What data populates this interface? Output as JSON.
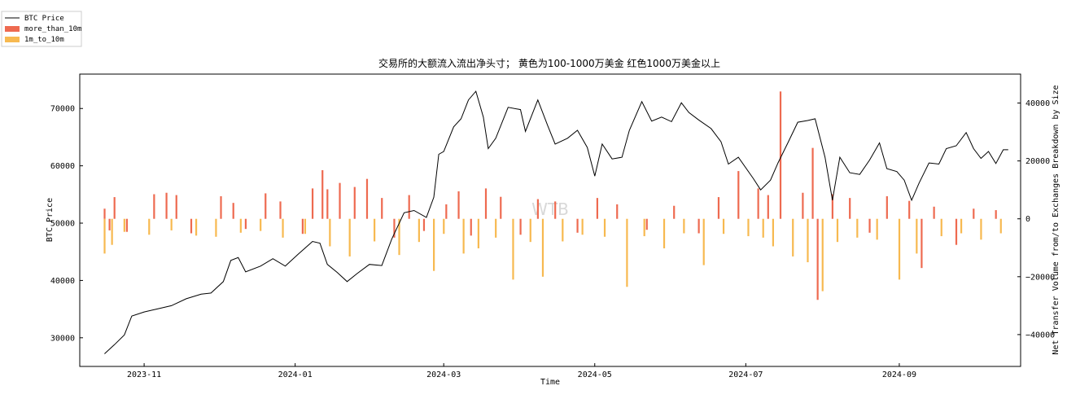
{
  "chart_data": {
    "type": "bar+line",
    "title": "交易所的大额流入流出净头寸； 黄色为100-1000万美金 红色1000万美金以上",
    "watermark": "WTB",
    "xlabel": "Time",
    "ylabel_left": "BTC Price",
    "ylabel_right": "Net Transfer Volume from/to Exchanges Breakdown by Size",
    "x_range": [
      "2023-10-06",
      "2024-10-20"
    ],
    "x_ticks": [
      "2023-11",
      "2024-01",
      "2024-03",
      "2024-05",
      "2024-07",
      "2024-09"
    ],
    "y_left_ticks": [
      30000,
      40000,
      50000,
      60000,
      70000
    ],
    "y_left_range": [
      25000,
      76000
    ],
    "y_right_ticks": [
      40000,
      20000,
      0,
      -20000,
      -40000
    ],
    "y_right_tick_labels": [
      "40000",
      "20000",
      "0",
      "−20000",
      "−40000"
    ],
    "y_right_range": [
      -51000,
      50000
    ],
    "legend": [
      {
        "label": "BTC Price",
        "color": "#000000",
        "kind": "line"
      },
      {
        "label": "more_than_10m",
        "color": "#ee6a50",
        "kind": "bar"
      },
      {
        "label": "1m_to_10m",
        "color": "#f7b950",
        "kind": "bar"
      }
    ],
    "legend_position": "top-left",
    "grid": false,
    "price_series": {
      "name": "BTC Price",
      "points": [
        [
          "2023-10-16",
          27200
        ],
        [
          "2023-10-20",
          28800
        ],
        [
          "2023-10-24",
          30500
        ],
        [
          "2023-10-27",
          33800
        ],
        [
          "2023-11-01",
          34500
        ],
        [
          "2023-11-06",
          35000
        ],
        [
          "2023-11-12",
          35600
        ],
        [
          "2023-11-18",
          36800
        ],
        [
          "2023-11-24",
          37600
        ],
        [
          "2023-11-28",
          37800
        ],
        [
          "2023-12-03",
          39800
        ],
        [
          "2023-12-06",
          43500
        ],
        [
          "2023-12-09",
          44000
        ],
        [
          "2023-12-12",
          41500
        ],
        [
          "2023-12-18",
          42500
        ],
        [
          "2023-12-23",
          43800
        ],
        [
          "2023-12-28",
          42500
        ],
        [
          "2024-01-02",
          44500
        ],
        [
          "2024-01-08",
          46800
        ],
        [
          "2024-01-11",
          46500
        ],
        [
          "2024-01-14",
          42800
        ],
        [
          "2024-01-18",
          41400
        ],
        [
          "2024-01-22",
          39800
        ],
        [
          "2024-01-26",
          41200
        ],
        [
          "2024-01-31",
          42800
        ],
        [
          "2024-02-05",
          42600
        ],
        [
          "2024-02-09",
          47200
        ],
        [
          "2024-02-14",
          51800
        ],
        [
          "2024-02-18",
          52200
        ],
        [
          "2024-02-23",
          51000
        ],
        [
          "2024-02-26",
          54500
        ],
        [
          "2024-02-28",
          62000
        ],
        [
          "2024-03-01",
          62500
        ],
        [
          "2024-03-05",
          66800
        ],
        [
          "2024-03-08",
          68200
        ],
        [
          "2024-03-11",
          71500
        ],
        [
          "2024-03-14",
          73000
        ],
        [
          "2024-03-17",
          68500
        ],
        [
          "2024-03-19",
          63000
        ],
        [
          "2024-03-22",
          64800
        ],
        [
          "2024-03-27",
          70200
        ],
        [
          "2024-04-01",
          69800
        ],
        [
          "2024-04-03",
          66000
        ],
        [
          "2024-04-08",
          71500
        ],
        [
          "2024-04-12",
          67000
        ],
        [
          "2024-04-15",
          63800
        ],
        [
          "2024-04-20",
          64800
        ],
        [
          "2024-04-24",
          66200
        ],
        [
          "2024-04-28",
          63200
        ],
        [
          "2024-05-01",
          58200
        ],
        [
          "2024-05-04",
          63800
        ],
        [
          "2024-05-08",
          61200
        ],
        [
          "2024-05-12",
          61500
        ],
        [
          "2024-05-15",
          66200
        ],
        [
          "2024-05-20",
          71200
        ],
        [
          "2024-05-24",
          67800
        ],
        [
          "2024-05-28",
          68500
        ],
        [
          "2024-06-01",
          67700
        ],
        [
          "2024-06-05",
          71000
        ],
        [
          "2024-06-08",
          69300
        ],
        [
          "2024-06-12",
          68000
        ],
        [
          "2024-06-17",
          66500
        ],
        [
          "2024-06-21",
          64200
        ],
        [
          "2024-06-24",
          60300
        ],
        [
          "2024-06-28",
          61500
        ],
        [
          "2024-07-04",
          57800
        ],
        [
          "2024-07-07",
          55800
        ],
        [
          "2024-07-11",
          57500
        ],
        [
          "2024-07-14",
          60500
        ],
        [
          "2024-07-18",
          64000
        ],
        [
          "2024-07-22",
          67600
        ],
        [
          "2024-07-26",
          67900
        ],
        [
          "2024-07-29",
          68200
        ],
        [
          "2024-08-02",
          61500
        ],
        [
          "2024-08-05",
          54000
        ],
        [
          "2024-08-08",
          61500
        ],
        [
          "2024-08-12",
          58800
        ],
        [
          "2024-08-16",
          58500
        ],
        [
          "2024-08-20",
          61000
        ],
        [
          "2024-08-24",
          64000
        ],
        [
          "2024-08-27",
          59500
        ],
        [
          "2024-08-31",
          59000
        ],
        [
          "2024-09-03",
          57500
        ],
        [
          "2024-09-06",
          54000
        ],
        [
          "2024-09-09",
          57000
        ],
        [
          "2024-09-13",
          60500
        ],
        [
          "2024-09-17",
          60300
        ],
        [
          "2024-09-20",
          63000
        ],
        [
          "2024-09-24",
          63500
        ],
        [
          "2024-09-28",
          65800
        ],
        [
          "2024-10-01",
          63000
        ],
        [
          "2024-10-04",
          61300
        ],
        [
          "2024-10-07",
          62500
        ],
        [
          "2024-10-10",
          60400
        ],
        [
          "2024-10-13",
          62800
        ],
        [
          "2024-10-15",
          62800
        ]
      ]
    },
    "flow_series": [
      {
        "name": "more_than_10m",
        "color": "#ee6a50",
        "points": [
          [
            "2023-10-16",
            3500
          ],
          [
            "2023-10-18",
            -4000
          ],
          [
            "2023-10-20",
            7500
          ],
          [
            "2023-10-25",
            -4500
          ],
          [
            "2023-11-05",
            8500
          ],
          [
            "2023-11-10",
            9000
          ],
          [
            "2023-11-14",
            8200
          ],
          [
            "2023-11-20",
            -5000
          ],
          [
            "2023-12-02",
            7800
          ],
          [
            "2023-12-07",
            5500
          ],
          [
            "2023-12-12",
            -3500
          ],
          [
            "2023-12-20",
            8800
          ],
          [
            "2023-12-26",
            6000
          ],
          [
            "2024-01-04",
            -5200
          ],
          [
            "2024-01-08",
            10500
          ],
          [
            "2024-01-12",
            16800
          ],
          [
            "2024-01-14",
            10200
          ],
          [
            "2024-01-19",
            12400
          ],
          [
            "2024-01-25",
            11000
          ],
          [
            "2024-01-30",
            13800
          ],
          [
            "2024-02-05",
            7200
          ],
          [
            "2024-02-10",
            -6500
          ],
          [
            "2024-02-16",
            8200
          ],
          [
            "2024-02-22",
            -4200
          ],
          [
            "2024-03-02",
            5000
          ],
          [
            "2024-03-07",
            9500
          ],
          [
            "2024-03-12",
            -5800
          ],
          [
            "2024-03-18",
            10500
          ],
          [
            "2024-03-24",
            7600
          ],
          [
            "2024-04-01",
            -5500
          ],
          [
            "2024-04-08",
            6800
          ],
          [
            "2024-04-15",
            6000
          ],
          [
            "2024-04-24",
            -4800
          ],
          [
            "2024-05-02",
            7200
          ],
          [
            "2024-05-10",
            5000
          ],
          [
            "2024-05-22",
            -3800
          ],
          [
            "2024-06-02",
            4500
          ],
          [
            "2024-06-12",
            -5000
          ],
          [
            "2024-06-20",
            7500
          ],
          [
            "2024-06-28",
            16500
          ],
          [
            "2024-07-06",
            10500
          ],
          [
            "2024-07-10",
            8200
          ],
          [
            "2024-07-15",
            44000
          ],
          [
            "2024-07-24",
            9000
          ],
          [
            "2024-07-28",
            24500
          ],
          [
            "2024-07-30",
            -28000
          ],
          [
            "2024-08-05",
            8500
          ],
          [
            "2024-08-12",
            7200
          ],
          [
            "2024-08-20",
            -4800
          ],
          [
            "2024-08-27",
            7800
          ],
          [
            "2024-09-05",
            6200
          ],
          [
            "2024-09-10",
            -17000
          ],
          [
            "2024-09-15",
            4200
          ],
          [
            "2024-09-24",
            -9000
          ],
          [
            "2024-10-01",
            3500
          ],
          [
            "2024-10-10",
            3000
          ]
        ]
      },
      {
        "name": "1m_to_10m",
        "color": "#f7b950",
        "points": [
          [
            "2023-10-16",
            -12000
          ],
          [
            "2023-10-19",
            -9000
          ],
          [
            "2023-10-24",
            -4500
          ],
          [
            "2023-11-03",
            -5500
          ],
          [
            "2023-11-12",
            -4000
          ],
          [
            "2023-11-22",
            -5800
          ],
          [
            "2023-11-30",
            -6200
          ],
          [
            "2023-12-10",
            -4800
          ],
          [
            "2023-12-18",
            -4200
          ],
          [
            "2023-12-27",
            -6500
          ],
          [
            "2024-01-05",
            -5200
          ],
          [
            "2024-01-15",
            -9500
          ],
          [
            "2024-01-23",
            -13000
          ],
          [
            "2024-02-02",
            -7800
          ],
          [
            "2024-02-12",
            -12500
          ],
          [
            "2024-02-20",
            -8000
          ],
          [
            "2024-02-26",
            -18000
          ],
          [
            "2024-03-01",
            -5200
          ],
          [
            "2024-03-09",
            -12000
          ],
          [
            "2024-03-15",
            -10200
          ],
          [
            "2024-03-22",
            -6500
          ],
          [
            "2024-03-29",
            -21000
          ],
          [
            "2024-04-05",
            -8000
          ],
          [
            "2024-04-10",
            -20000
          ],
          [
            "2024-04-18",
            -7800
          ],
          [
            "2024-04-26",
            -5500
          ],
          [
            "2024-05-05",
            -6200
          ],
          [
            "2024-05-14",
            -23500
          ],
          [
            "2024-05-21",
            -6000
          ],
          [
            "2024-05-29",
            -10200
          ],
          [
            "2024-06-06",
            -5000
          ],
          [
            "2024-06-14",
            -16000
          ],
          [
            "2024-06-22",
            -5200
          ],
          [
            "2024-07-02",
            -6000
          ],
          [
            "2024-07-08",
            -6500
          ],
          [
            "2024-07-12",
            -9500
          ],
          [
            "2024-07-20",
            -13000
          ],
          [
            "2024-07-26",
            -15000
          ],
          [
            "2024-08-01",
            -25000
          ],
          [
            "2024-08-07",
            -8000
          ],
          [
            "2024-08-15",
            -6500
          ],
          [
            "2024-08-23",
            -7200
          ],
          [
            "2024-09-01",
            -21000
          ],
          [
            "2024-09-08",
            -12000
          ],
          [
            "2024-09-18",
            -6000
          ],
          [
            "2024-09-26",
            -5000
          ],
          [
            "2024-10-04",
            -7200
          ],
          [
            "2024-10-12",
            -5000
          ]
        ]
      }
    ]
  }
}
